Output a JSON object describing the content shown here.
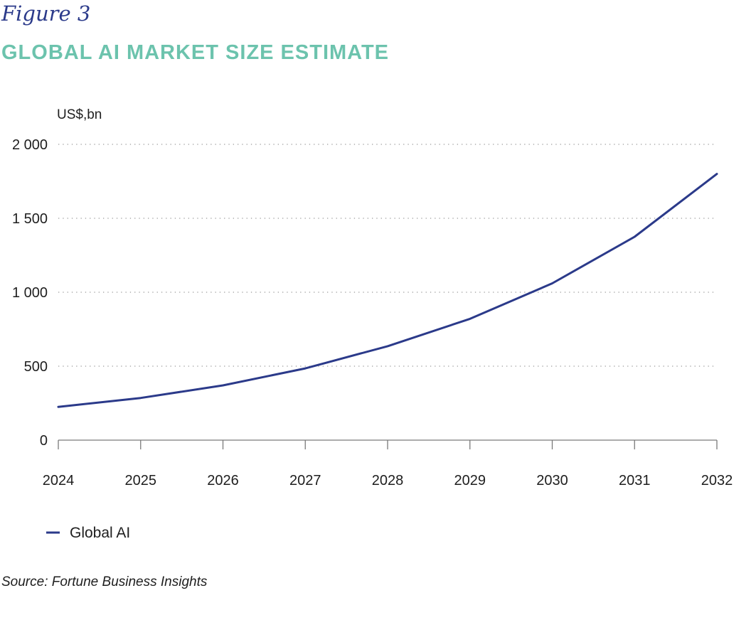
{
  "figure_label": "Figure 3",
  "title": "GLOBAL AI MARKET SIZE ESTIMATE",
  "source": "Source: Fortune Business Insights",
  "colors": {
    "line": "#2b3a8a",
    "title": "#6cc3ad",
    "grid": "#9a9a9a"
  },
  "chart_data": {
    "type": "line",
    "title": "GLOBAL AI MARKET SIZE ESTIMATE",
    "ylabel": "US$,bn",
    "xlabel": "",
    "x": [
      "2024",
      "2025",
      "2026",
      "2027",
      "2028",
      "2029",
      "2030",
      "2031",
      "2032"
    ],
    "series": [
      {
        "name": "Global AI",
        "values": [
          225,
          285,
          370,
          485,
          635,
          820,
          1060,
          1375,
          1800
        ]
      }
    ],
    "ylim": [
      0,
      2000
    ],
    "yticks": [
      0,
      500,
      1000,
      1500,
      2000
    ],
    "ytick_labels": [
      "0",
      "500",
      "1 000",
      "1 500",
      "2 000"
    ],
    "grid": "horizontal dotted",
    "legend_position": "bottom-left"
  }
}
